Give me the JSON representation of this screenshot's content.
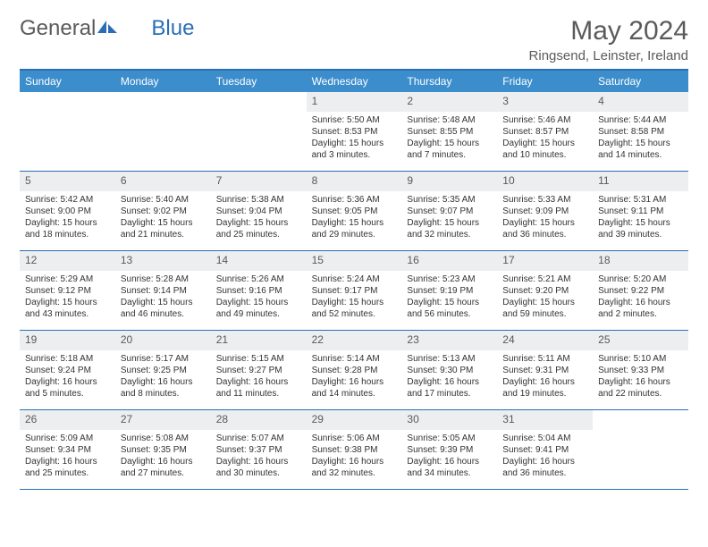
{
  "brand": {
    "part1": "General",
    "part2": "Blue"
  },
  "title": "May 2024",
  "location": "Ringsend, Leinster, Ireland",
  "colors": {
    "header_bg": "#3c8dcc",
    "accent_border": "#2a6fb5",
    "daynum_bg": "#eceef0",
    "text": "#333333",
    "muted": "#5a5a5a"
  },
  "day_labels": [
    "Sunday",
    "Monday",
    "Tuesday",
    "Wednesday",
    "Thursday",
    "Friday",
    "Saturday"
  ],
  "weeks": [
    [
      {
        "blank": true
      },
      {
        "blank": true
      },
      {
        "blank": true
      },
      {
        "day": "1",
        "sunrise": "5:50 AM",
        "sunset": "8:53 PM",
        "daylight": "15 hours and 3 minutes."
      },
      {
        "day": "2",
        "sunrise": "5:48 AM",
        "sunset": "8:55 PM",
        "daylight": "15 hours and 7 minutes."
      },
      {
        "day": "3",
        "sunrise": "5:46 AM",
        "sunset": "8:57 PM",
        "daylight": "15 hours and 10 minutes."
      },
      {
        "day": "4",
        "sunrise": "5:44 AM",
        "sunset": "8:58 PM",
        "daylight": "15 hours and 14 minutes."
      }
    ],
    [
      {
        "day": "5",
        "sunrise": "5:42 AM",
        "sunset": "9:00 PM",
        "daylight": "15 hours and 18 minutes."
      },
      {
        "day": "6",
        "sunrise": "5:40 AM",
        "sunset": "9:02 PM",
        "daylight": "15 hours and 21 minutes."
      },
      {
        "day": "7",
        "sunrise": "5:38 AM",
        "sunset": "9:04 PM",
        "daylight": "15 hours and 25 minutes."
      },
      {
        "day": "8",
        "sunrise": "5:36 AM",
        "sunset": "9:05 PM",
        "daylight": "15 hours and 29 minutes."
      },
      {
        "day": "9",
        "sunrise": "5:35 AM",
        "sunset": "9:07 PM",
        "daylight": "15 hours and 32 minutes."
      },
      {
        "day": "10",
        "sunrise": "5:33 AM",
        "sunset": "9:09 PM",
        "daylight": "15 hours and 36 minutes."
      },
      {
        "day": "11",
        "sunrise": "5:31 AM",
        "sunset": "9:11 PM",
        "daylight": "15 hours and 39 minutes."
      }
    ],
    [
      {
        "day": "12",
        "sunrise": "5:29 AM",
        "sunset": "9:12 PM",
        "daylight": "15 hours and 43 minutes."
      },
      {
        "day": "13",
        "sunrise": "5:28 AM",
        "sunset": "9:14 PM",
        "daylight": "15 hours and 46 minutes."
      },
      {
        "day": "14",
        "sunrise": "5:26 AM",
        "sunset": "9:16 PM",
        "daylight": "15 hours and 49 minutes."
      },
      {
        "day": "15",
        "sunrise": "5:24 AM",
        "sunset": "9:17 PM",
        "daylight": "15 hours and 52 minutes."
      },
      {
        "day": "16",
        "sunrise": "5:23 AM",
        "sunset": "9:19 PM",
        "daylight": "15 hours and 56 minutes."
      },
      {
        "day": "17",
        "sunrise": "5:21 AM",
        "sunset": "9:20 PM",
        "daylight": "15 hours and 59 minutes."
      },
      {
        "day": "18",
        "sunrise": "5:20 AM",
        "sunset": "9:22 PM",
        "daylight": "16 hours and 2 minutes."
      }
    ],
    [
      {
        "day": "19",
        "sunrise": "5:18 AM",
        "sunset": "9:24 PM",
        "daylight": "16 hours and 5 minutes."
      },
      {
        "day": "20",
        "sunrise": "5:17 AM",
        "sunset": "9:25 PM",
        "daylight": "16 hours and 8 minutes."
      },
      {
        "day": "21",
        "sunrise": "5:15 AM",
        "sunset": "9:27 PM",
        "daylight": "16 hours and 11 minutes."
      },
      {
        "day": "22",
        "sunrise": "5:14 AM",
        "sunset": "9:28 PM",
        "daylight": "16 hours and 14 minutes."
      },
      {
        "day": "23",
        "sunrise": "5:13 AM",
        "sunset": "9:30 PM",
        "daylight": "16 hours and 17 minutes."
      },
      {
        "day": "24",
        "sunrise": "5:11 AM",
        "sunset": "9:31 PM",
        "daylight": "16 hours and 19 minutes."
      },
      {
        "day": "25",
        "sunrise": "5:10 AM",
        "sunset": "9:33 PM",
        "daylight": "16 hours and 22 minutes."
      }
    ],
    [
      {
        "day": "26",
        "sunrise": "5:09 AM",
        "sunset": "9:34 PM",
        "daylight": "16 hours and 25 minutes."
      },
      {
        "day": "27",
        "sunrise": "5:08 AM",
        "sunset": "9:35 PM",
        "daylight": "16 hours and 27 minutes."
      },
      {
        "day": "28",
        "sunrise": "5:07 AM",
        "sunset": "9:37 PM",
        "daylight": "16 hours and 30 minutes."
      },
      {
        "day": "29",
        "sunrise": "5:06 AM",
        "sunset": "9:38 PM",
        "daylight": "16 hours and 32 minutes."
      },
      {
        "day": "30",
        "sunrise": "5:05 AM",
        "sunset": "9:39 PM",
        "daylight": "16 hours and 34 minutes."
      },
      {
        "day": "31",
        "sunrise": "5:04 AM",
        "sunset": "9:41 PM",
        "daylight": "16 hours and 36 minutes."
      },
      {
        "blank": true
      }
    ]
  ],
  "field_labels": {
    "sunrise": "Sunrise:",
    "sunset": "Sunset:",
    "daylight": "Daylight:"
  }
}
